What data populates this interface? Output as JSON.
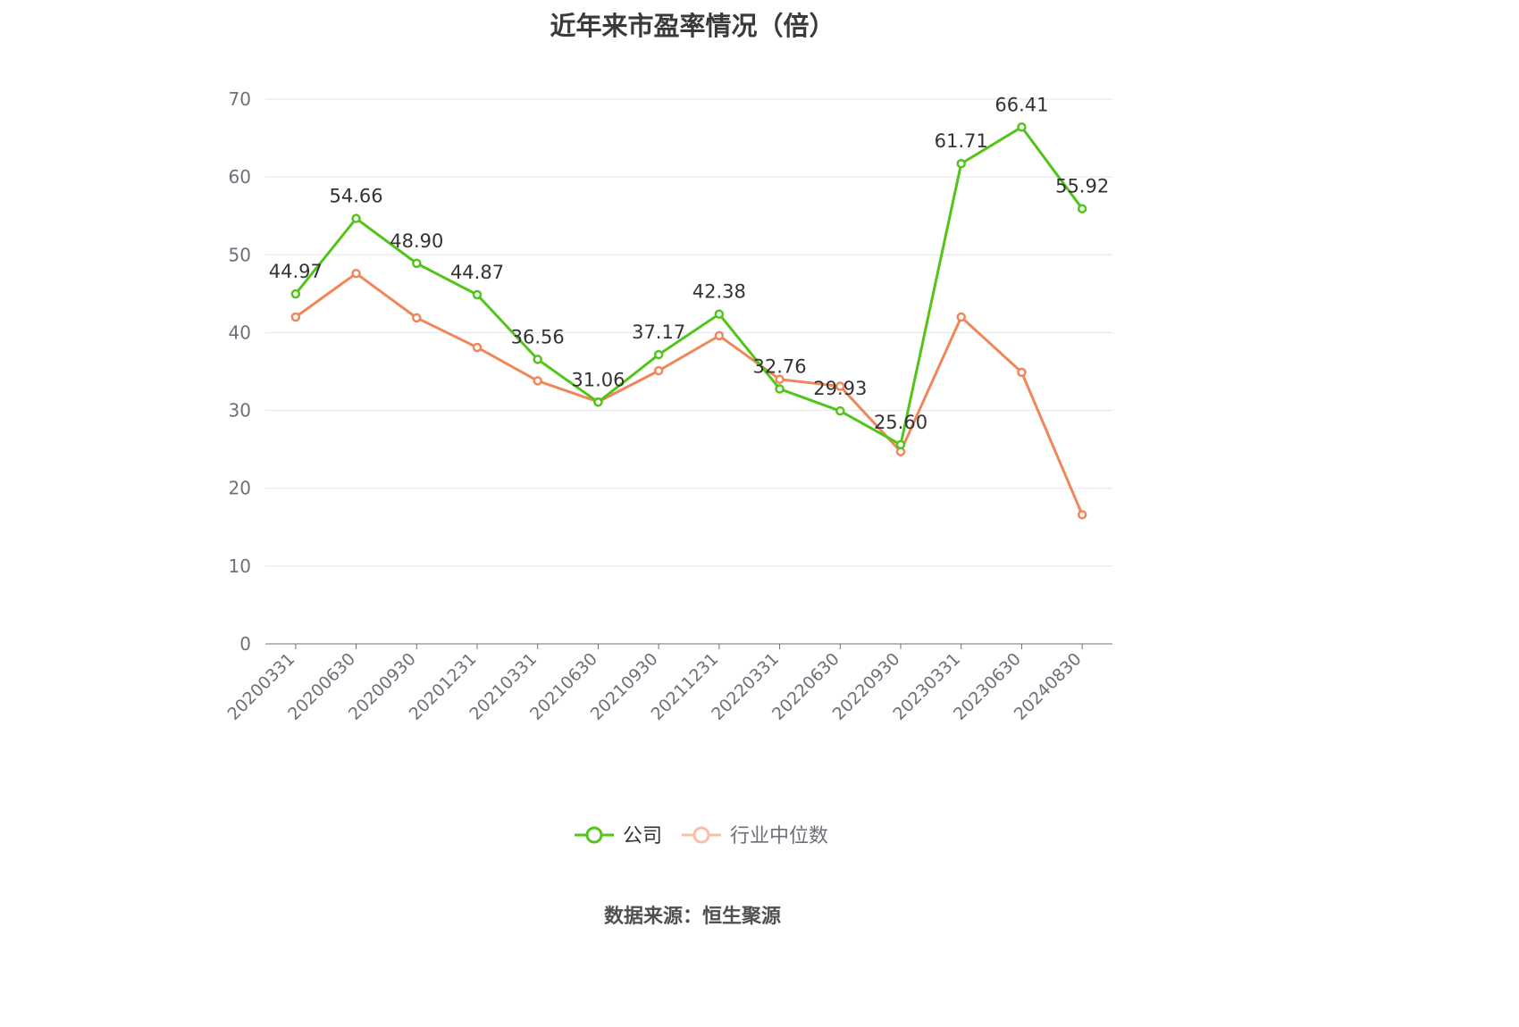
{
  "chart_data": {
    "type": "line",
    "title": "近年来市盈率情况（倍）",
    "xlabel": "",
    "ylabel": "",
    "ylim": [
      0,
      70
    ],
    "yticks": [
      "0",
      "10",
      "20",
      "30",
      "40",
      "50",
      "60",
      "70"
    ],
    "grid": true,
    "legend_position": "bottom",
    "categories": [
      "20200331",
      "20200630",
      "20200930",
      "20201231",
      "20210331",
      "20210630",
      "20210930",
      "20211231",
      "20220331",
      "20220630",
      "20220930",
      "20230331",
      "20230630",
      "20240830"
    ],
    "series": [
      {
        "name": "公司",
        "color": "#52c41a",
        "show_labels": true,
        "values": [
          44.97,
          54.66,
          48.9,
          44.87,
          36.56,
          31.06,
          37.17,
          42.38,
          32.76,
          29.93,
          25.6,
          61.71,
          66.41,
          55.92
        ],
        "labels": [
          "44.97",
          "54.66",
          "48.90",
          "44.87",
          "36.56",
          "31.06",
          "37.17",
          "42.38",
          "32.76",
          "29.93",
          "25.60",
          "61.71",
          "66.41",
          "55.92"
        ]
      },
      {
        "name": "行业中位数",
        "color": "#f0875a",
        "legend_color": "#f7bfa6",
        "show_labels": false,
        "values": [
          42.0,
          47.6,
          41.9,
          38.1,
          33.8,
          31.1,
          35.1,
          39.6,
          34.0,
          33.1,
          24.7,
          42.0,
          34.9,
          16.6
        ]
      }
    ]
  },
  "footer": {
    "source": "数据来源：恒生聚源"
  }
}
